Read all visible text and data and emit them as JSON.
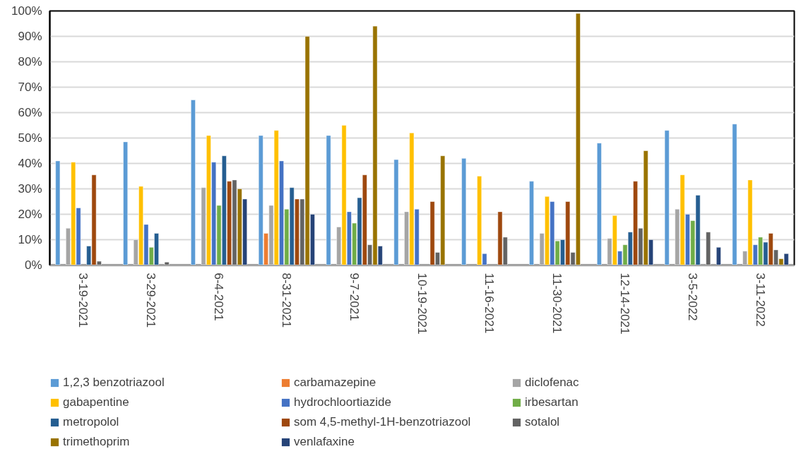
{
  "chart_data": {
    "type": "bar",
    "categories": [
      "3-19-2021",
      "3-29-2021",
      "6-4-2021",
      "8-31-2021",
      "9-7-2021",
      "10-19-2021",
      "11-16-2021",
      "11-30-2021",
      "12-14-2021",
      "3-5-2022",
      "3-11-2022"
    ],
    "series": [
      {
        "name": "1,2,3 benzotriazool",
        "color": "#5b9bd5",
        "values": [
          41,
          48.5,
          65,
          51,
          51,
          41.5,
          42,
          33,
          48,
          53,
          55.5
        ]
      },
      {
        "name": "carbamazepine",
        "color": "#ed7d31",
        "values": [
          null,
          null,
          null,
          12.5,
          null,
          null,
          null,
          null,
          null,
          null,
          null
        ]
      },
      {
        "name": "diclofenac",
        "color": "#a5a5a5",
        "values": [
          14.5,
          10,
          30.5,
          23.5,
          15,
          21,
          null,
          12.5,
          10.5,
          22,
          5.5
        ]
      },
      {
        "name": "gabapentine",
        "color": "#ffc000",
        "values": [
          40.5,
          31,
          51,
          53,
          55,
          52,
          35,
          27,
          19.5,
          35.5,
          33.5
        ]
      },
      {
        "name": "hydrochloortiazide",
        "color": "#4472c4",
        "values": [
          22.5,
          16,
          40.5,
          41,
          21,
          22,
          4.5,
          25,
          5.5,
          20,
          8
        ]
      },
      {
        "name": "irbesartan",
        "color": "#70ad47",
        "values": [
          null,
          7,
          23.5,
          22,
          16.5,
          null,
          null,
          9.5,
          8,
          17.5,
          11
        ]
      },
      {
        "name": "metropolol",
        "color": "#255e91",
        "values": [
          7.5,
          12.5,
          43,
          30.5,
          26.5,
          null,
          null,
          10,
          13,
          27.5,
          9
        ]
      },
      {
        "name": "som 4,5-methyl-1H-benzotriazool",
        "color": "#9e480e",
        "values": [
          35.5,
          null,
          33,
          26,
          35.5,
          25,
          21,
          25,
          33,
          null,
          12.5
        ]
      },
      {
        "name": "sotalol",
        "color": "#636363",
        "values": [
          1.5,
          1.2,
          33.5,
          26,
          8,
          5,
          11,
          5,
          14.5,
          13,
          6
        ]
      },
      {
        "name": "trimethoprim",
        "color": "#997300",
        "values": [
          null,
          null,
          30,
          90,
          94,
          43,
          null,
          99,
          45,
          null,
          2.5
        ]
      },
      {
        "name": "venlafaxine",
        "color": "#264478",
        "values": [
          null,
          null,
          26,
          20,
          7.5,
          null,
          null,
          null,
          10,
          7,
          4.5
        ]
      }
    ],
    "ylim": [
      0,
      100
    ],
    "yticks": [
      {
        "value": 0,
        "label": "0%"
      },
      {
        "value": 10,
        "label": "10%"
      },
      {
        "value": 20,
        "label": "20%"
      },
      {
        "value": 30,
        "label": "30%"
      },
      {
        "value": 40,
        "label": "40%"
      },
      {
        "value": 50,
        "label": "50%"
      },
      {
        "value": 60,
        "label": "60%"
      },
      {
        "value": 70,
        "label": "70%"
      },
      {
        "value": 80,
        "label": "80%"
      },
      {
        "value": 90,
        "label": "90%"
      },
      {
        "value": 100,
        "label": "100%"
      }
    ],
    "grid": "y",
    "legend": "bottom"
  }
}
